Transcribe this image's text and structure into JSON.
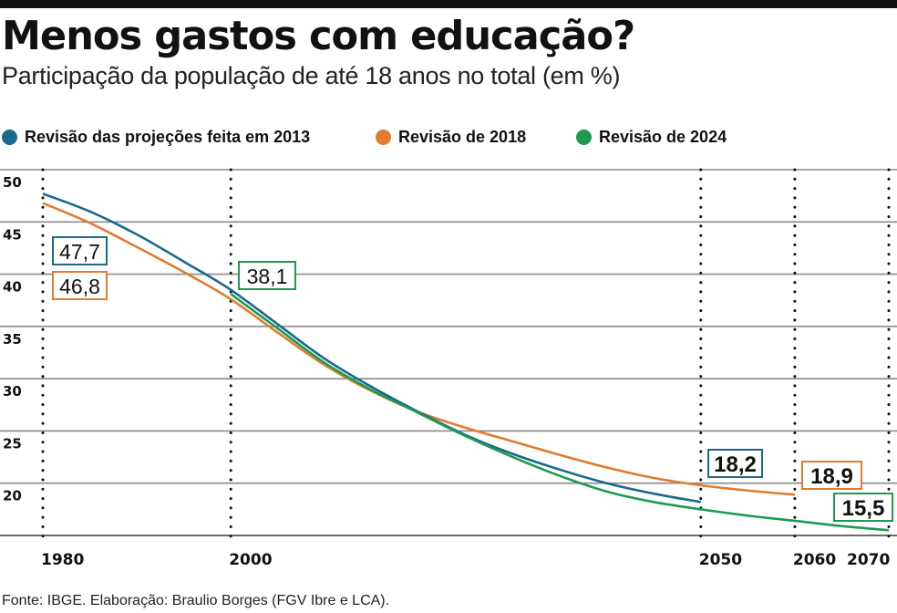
{
  "title": "Menos gastos com educação?",
  "subtitle": "Participação da população de até 18 anos no total (em %)",
  "source": "Fonte: IBGE. Elaboração: Braulio Borges (FGV Ibre e LCA).",
  "chart_data": {
    "type": "line",
    "title": "Menos gastos com educação?",
    "ylabel": "Participação da população de até 18 anos no total (em %)",
    "xlabel": "",
    "ylim": [
      15,
      50
    ],
    "xlim": [
      1980,
      2070
    ],
    "yticks": [
      50,
      45,
      40,
      35,
      30,
      25,
      20
    ],
    "xticks": [
      1980,
      2000,
      2050,
      2060,
      2070
    ],
    "grid": true,
    "legend_position": "top",
    "series": [
      {
        "name": "Revisão das projeções feita em 2013",
        "color": "#1a6a8e",
        "x": [
          1980,
          1985,
          1990,
          1995,
          2000,
          2005,
          2010,
          2015,
          2020,
          2025,
          2030,
          2035,
          2040,
          2045,
          2050
        ],
        "values": [
          47.7,
          46.0,
          43.8,
          41.2,
          38.5,
          35.2,
          31.9,
          29.2,
          26.8,
          24.6,
          22.8,
          21.3,
          20.0,
          19.0,
          18.2
        ],
        "labels": [
          {
            "x": 1980,
            "text": "47,7"
          },
          {
            "x": 2050,
            "text": "18,2"
          }
        ]
      },
      {
        "name": "Revisão de 2018",
        "color": "#e07b30",
        "x": [
          1980,
          1985,
          1990,
          1995,
          2000,
          2005,
          2010,
          2015,
          2020,
          2025,
          2030,
          2035,
          2040,
          2045,
          2050,
          2055,
          2060
        ],
        "values": [
          46.8,
          44.9,
          42.6,
          40.2,
          37.6,
          34.4,
          31.3,
          28.8,
          26.8,
          25.3,
          24.0,
          22.7,
          21.5,
          20.5,
          19.8,
          19.3,
          18.9
        ],
        "labels": [
          {
            "x": 1980,
            "text": "46,8"
          },
          {
            "x": 2060,
            "text": "18,9"
          }
        ]
      },
      {
        "name": "Revisão de 2024",
        "color": "#1e9a50",
        "x": [
          2000,
          2005,
          2010,
          2015,
          2020,
          2025,
          2030,
          2035,
          2040,
          2045,
          2050,
          2055,
          2060,
          2065,
          2070
        ],
        "values": [
          38.1,
          34.8,
          31.5,
          28.9,
          26.7,
          24.5,
          22.5,
          20.7,
          19.2,
          18.2,
          17.5,
          16.9,
          16.4,
          15.9,
          15.5
        ],
        "labels": [
          {
            "x": 2000,
            "text": "38,1"
          },
          {
            "x": 2070,
            "text": "15,5"
          }
        ]
      }
    ]
  }
}
